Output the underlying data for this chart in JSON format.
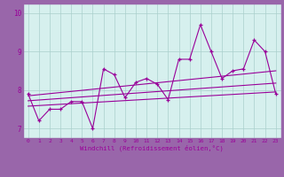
{
  "xlabel": "Windchill (Refroidissement éolien,°C)",
  "xlim": [
    -0.5,
    23.5
  ],
  "ylim": [
    6.75,
    10.25
  ],
  "yticks": [
    7,
    8,
    9,
    10
  ],
  "xticks": [
    0,
    1,
    2,
    3,
    4,
    5,
    6,
    7,
    8,
    9,
    10,
    11,
    12,
    13,
    14,
    15,
    16,
    17,
    18,
    19,
    20,
    21,
    22,
    23
  ],
  "line_color": "#990099",
  "outer_bg": "#9966aa",
  "plot_bg": "#d6f0ee",
  "main_y": [
    7.9,
    7.2,
    7.5,
    7.5,
    7.7,
    7.7,
    7.0,
    8.55,
    8.4,
    7.8,
    8.2,
    8.3,
    8.15,
    7.75,
    8.8,
    8.8,
    9.7,
    9.0,
    8.3,
    8.5,
    8.55,
    9.3,
    9.0,
    7.9
  ],
  "trend1_y0": 7.85,
  "trend1_y1": 8.5,
  "trend2_y0": 7.72,
  "trend2_y1": 8.18,
  "trend3_y0": 7.58,
  "trend3_y1": 7.95
}
